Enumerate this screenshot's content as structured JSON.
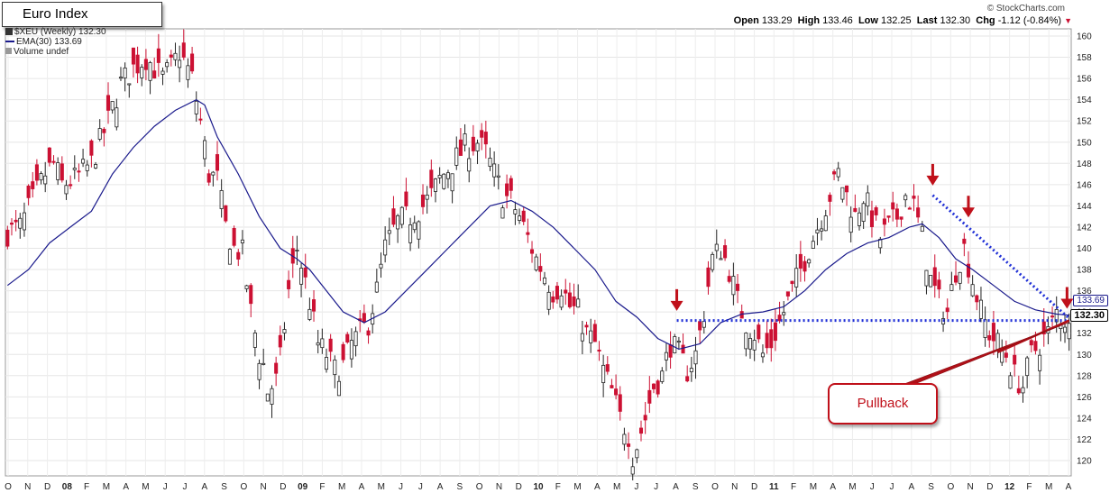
{
  "header": {
    "title": "Euro Index",
    "brand": "© StockCharts.com"
  },
  "quote": {
    "open_label": "Open",
    "open": "133.29",
    "high_label": "High",
    "high": "133.46",
    "low_label": "Low",
    "low": "132.25",
    "last_label": "Last",
    "last": "132.30",
    "chg_label": "Chg",
    "chg": "-1.12 (-0.84%)",
    "chg_marker": "▼"
  },
  "legend": {
    "symbol": "$XEU (Weekly) 132.30",
    "ema": "EMA(30) 133.69",
    "volume": "Volume undef"
  },
  "price_tags": {
    "ema": "133.69",
    "last": "132.30"
  },
  "annotation": {
    "pullback": "Pullback"
  },
  "colors": {
    "up": "#ffffff",
    "down": "#cc1133",
    "ema": "#1a1a8c",
    "trendline": "#1f2fd6",
    "arrow": "#c0101a"
  },
  "chart_data": {
    "type": "candlestick",
    "period": "weekly",
    "symbol": "$XEU",
    "x_labels": [
      "O",
      "N",
      "D",
      "08",
      "F",
      "M",
      "A",
      "M",
      "J",
      "J",
      "A",
      "S",
      "O",
      "N",
      "D",
      "09",
      "F",
      "M",
      "A",
      "M",
      "J",
      "J",
      "A",
      "S",
      "O",
      "N",
      "D",
      "10",
      "F",
      "M",
      "A",
      "M",
      "J",
      "J",
      "A",
      "S",
      "O",
      "N",
      "D",
      "11",
      "F",
      "M",
      "A",
      "M",
      "J",
      "J",
      "A",
      "S",
      "O",
      "N",
      "D",
      "12",
      "F",
      "M",
      "A"
    ],
    "ylim": [
      119,
      161
    ],
    "y_ticks": [
      120,
      122,
      124,
      126,
      128,
      130,
      132,
      134,
      136,
      138,
      140,
      142,
      144,
      146,
      148,
      150,
      152,
      154,
      156,
      158,
      160
    ],
    "close_path": [
      [
        0,
        141.5
      ],
      [
        3,
        142
      ],
      [
        6,
        144.5
      ],
      [
        9,
        147
      ],
      [
        11,
        148
      ],
      [
        13,
        146
      ],
      [
        16,
        146.5
      ],
      [
        20,
        148
      ],
      [
        24,
        152
      ],
      [
        27,
        155.5
      ],
      [
        30,
        157
      ],
      [
        33,
        158
      ],
      [
        35,
        157
      ],
      [
        37,
        156
      ],
      [
        39,
        157
      ],
      [
        41,
        158.5
      ],
      [
        44,
        156
      ],
      [
        46,
        152
      ],
      [
        48,
        147
      ],
      [
        50,
        146.5
      ],
      [
        52,
        142
      ],
      [
        54,
        140
      ],
      [
        56,
        139.5
      ],
      [
        58,
        134
      ],
      [
        60,
        130
      ],
      [
        61,
        129
      ],
      [
        62,
        126.5
      ],
      [
        64,
        127.5
      ],
      [
        65,
        129.5
      ],
      [
        67,
        136
      ],
      [
        69,
        140
      ],
      [
        70,
        138.5
      ],
      [
        72,
        135
      ],
      [
        74,
        131
      ],
      [
        76,
        130
      ],
      [
        78,
        128.5
      ],
      [
        80,
        129
      ],
      [
        82,
        131
      ],
      [
        84,
        132
      ],
      [
        86,
        133
      ],
      [
        88,
        136
      ],
      [
        90,
        140
      ],
      [
        93,
        142.5
      ],
      [
        96,
        143
      ],
      [
        99,
        144
      ],
      [
        101,
        145
      ],
      [
        103,
        146.5
      ],
      [
        106,
        148
      ],
      [
        109,
        149.5
      ],
      [
        112,
        150
      ],
      [
        114,
        149
      ],
      [
        116,
        147
      ],
      [
        118,
        145
      ],
      [
        120,
        144.5
      ],
      [
        122,
        143
      ],
      [
        124,
        141
      ],
      [
        126,
        139
      ],
      [
        128,
        137.5
      ],
      [
        130,
        136
      ],
      [
        132,
        136.5
      ],
      [
        134,
        134.5
      ],
      [
        136,
        134
      ],
      [
        138,
        132
      ],
      [
        140,
        131
      ],
      [
        142,
        128.5
      ],
      [
        144,
        126.5
      ],
      [
        146,
        124
      ],
      [
        148,
        122.5
      ],
      [
        149,
        120.5
      ],
      [
        150,
        121.5
      ],
      [
        152,
        124
      ],
      [
        154,
        127
      ],
      [
        156,
        128
      ],
      [
        158,
        131
      ],
      [
        160,
        130
      ],
      [
        162,
        128.5
      ],
      [
        164,
        130
      ],
      [
        166,
        134
      ],
      [
        168,
        139
      ],
      [
        170,
        140
      ],
      [
        172,
        138
      ],
      [
        174,
        135
      ],
      [
        176,
        133
      ],
      [
        178,
        132
      ],
      [
        180,
        130
      ],
      [
        182,
        131
      ],
      [
        184,
        133
      ],
      [
        186,
        135
      ],
      [
        188,
        137
      ],
      [
        190,
        139
      ],
      [
        192,
        141
      ],
      [
        194,
        143
      ],
      [
        196,
        145
      ],
      [
        198,
        147
      ],
      [
        200,
        145
      ],
      [
        202,
        143
      ],
      [
        204,
        145
      ],
      [
        206,
        143
      ],
      [
        208,
        141
      ],
      [
        210,
        142
      ],
      [
        212,
        143
      ],
      [
        214,
        145
      ],
      [
        216,
        144
      ],
      [
        218,
        141
      ],
      [
        220,
        137
      ],
      [
        222,
        135
      ],
      [
        224,
        134
      ],
      [
        226,
        138
      ],
      [
        228,
        140
      ],
      [
        230,
        137
      ],
      [
        232,
        134
      ],
      [
        234,
        132
      ],
      [
        236,
        131
      ],
      [
        238,
        130
      ],
      [
        240,
        128
      ],
      [
        242,
        127
      ],
      [
        244,
        130
      ],
      [
        246,
        131
      ],
      [
        248,
        132
      ],
      [
        250,
        134
      ],
      [
        252,
        133.3
      ],
      [
        253,
        132.3
      ]
    ],
    "ema_path": [
      [
        0,
        136.5
      ],
      [
        5,
        138
      ],
      [
        10,
        140.5
      ],
      [
        15,
        142
      ],
      [
        20,
        143.5
      ],
      [
        25,
        147
      ],
      [
        30,
        149.5
      ],
      [
        35,
        151.5
      ],
      [
        40,
        153
      ],
      [
        45,
        154
      ],
      [
        47,
        153.5
      ],
      [
        50,
        150.5
      ],
      [
        55,
        147
      ],
      [
        60,
        143
      ],
      [
        65,
        140
      ],
      [
        69,
        139
      ],
      [
        72,
        138
      ],
      [
        76,
        136
      ],
      [
        80,
        134
      ],
      [
        85,
        133
      ],
      [
        90,
        134
      ],
      [
        95,
        136
      ],
      [
        100,
        138
      ],
      [
        105,
        140
      ],
      [
        110,
        142
      ],
      [
        115,
        144
      ],
      [
        120,
        144.5
      ],
      [
        125,
        143.5
      ],
      [
        130,
        142
      ],
      [
        135,
        140
      ],
      [
        140,
        138
      ],
      [
        145,
        135
      ],
      [
        150,
        133.5
      ],
      [
        155,
        131.5
      ],
      [
        160,
        130.5
      ],
      [
        165,
        131
      ],
      [
        170,
        133
      ],
      [
        175,
        133.8
      ],
      [
        180,
        134
      ],
      [
        185,
        134.5
      ],
      [
        190,
        136
      ],
      [
        195,
        138
      ],
      [
        200,
        139.5
      ],
      [
        205,
        140.5
      ],
      [
        210,
        141
      ],
      [
        215,
        142
      ],
      [
        218,
        142.3
      ],
      [
        222,
        141
      ],
      [
        226,
        139
      ],
      [
        230,
        138
      ],
      [
        235,
        136.5
      ],
      [
        240,
        135
      ],
      [
        245,
        134.2
      ],
      [
        250,
        133.8
      ],
      [
        253,
        133.7
      ]
    ],
    "last": 132.3,
    "ema30": 133.69
  },
  "annotations_shapes": {
    "arrows_x": [
      159.5,
      220.5,
      229,
      252.5
    ],
    "horizontal_trendline": {
      "x": [
        159.5,
        253
      ],
      "y": 133.2
    },
    "descending_trendline": {
      "x": [
        220.5,
        253
      ],
      "y": [
        145,
        133.4
      ]
    },
    "ascending_trendline": {
      "x": [
        236,
        253
      ],
      "y": [
        130.2,
        133.2
      ]
    }
  }
}
